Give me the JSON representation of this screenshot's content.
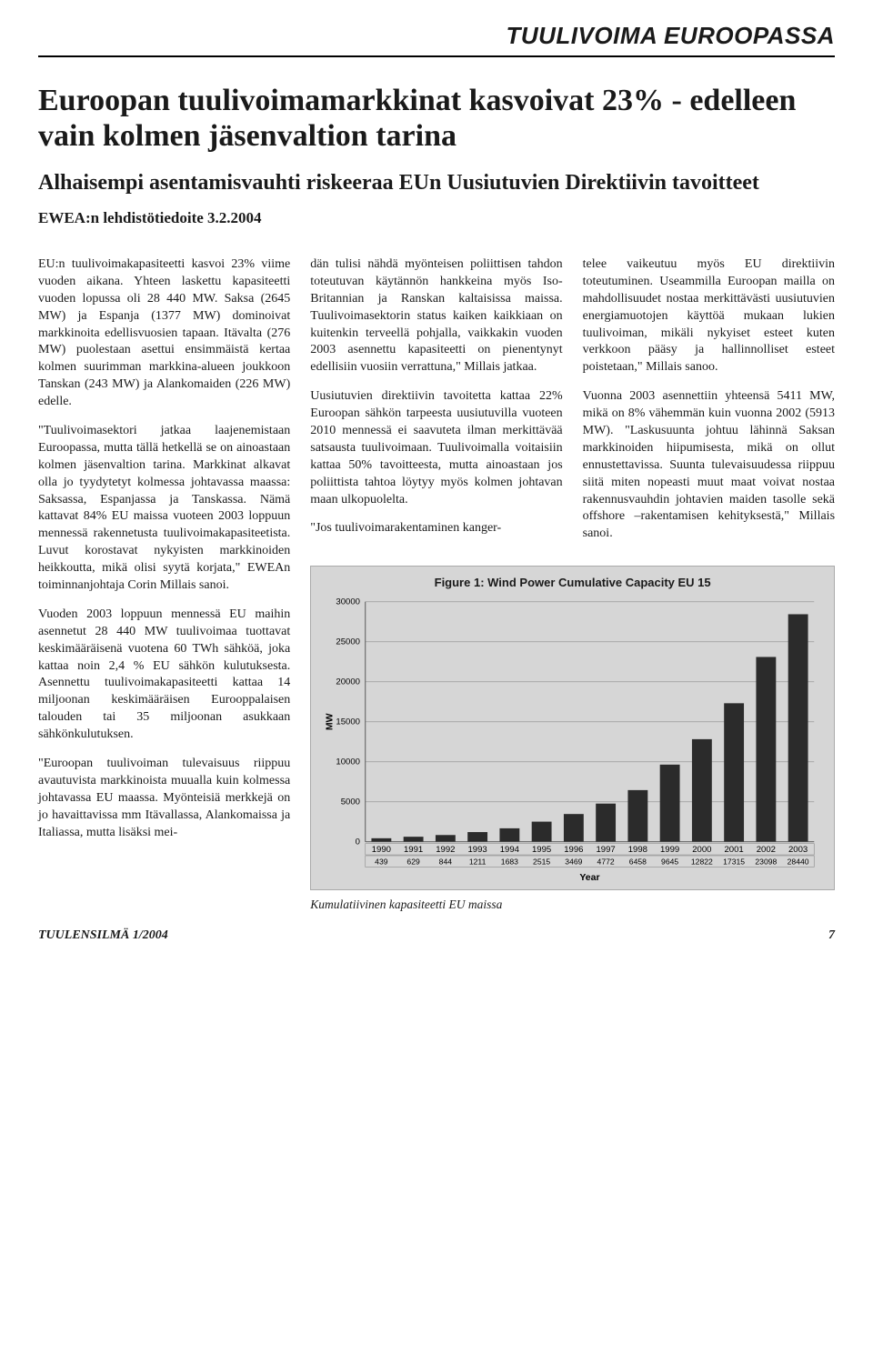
{
  "section_header": "TUULIVOIMA EUROOPASSA",
  "headline": "Euroopan tuulivoimamarkkinat kasvoivat 23% - edelleen vain kolmen jäsenvaltion tarina",
  "subhead": "Alhaisempi asentamisvauhti riskeeraa EUn Uusiutuvien Direktiivin tavoitteet",
  "dateline": "EWEA:n lehdistötiedoite 3.2.2004",
  "col1": {
    "p1": "EU:n tuulivoimakapasiteetti kasvoi 23% viime vuoden aikana. Yhteen laskettu kapasiteetti vuoden lopussa oli 28 440 MW. Saksa (2645 MW) ja Espanja (1377 MW) dominoivat markkinoita edellisvuosien tapaan. Itävalta (276 MW) puolestaan asettui ensimmäistä kertaa kolmen suurimman markkina-alueen joukkoon Tanskan (243 MW) ja Alankomaiden (226 MW) edelle.",
    "p2": "\"Tuulivoimasektori jatkaa laajenemistaan Euroopassa, mutta tällä hetkellä se on ainoastaan kolmen jäsenvaltion tarina. Markkinat alkavat olla jo tyydytetyt kolmessa johtavassa maassa: Saksassa, Espanjassa ja Tanskassa. Nämä kattavat 84% EU maissa vuoteen 2003 loppuun mennessä rakennetusta tuulivoimakapasiteetista. Luvut korostavat nykyisten markkinoiden heikkoutta, mikä olisi syytä korjata,\" EWEAn toiminnanjohtaja Corin Millais sanoi.",
    "p3": "Vuoden 2003 loppuun mennessä EU maihin asennetut 28 440 MW tuulivoimaa tuottavat keskimääräisenä vuotena 60 TWh sähköä, joka kattaa noin 2,4 % EU sähkön kulutuksesta. Asennettu tuulivoimakapasiteetti kattaa 14 miljoonan keskimääräisen Eurooppalaisen talouden tai 35 miljoonan asukkaan sähkönkulutuksen.",
    "p4": "\"Euroopan tuulivoiman tulevaisuus riippuu avautuvista markkinoista muualla kuin kolmessa johtavassa EU maassa. Myönteisiä merkkejä on jo havaittavissa mm Itävallassa, Alankomaissa ja Italiassa, mutta lisäksi mei-"
  },
  "col2": {
    "p1": "dän tulisi nähdä myönteisen poliittisen tahdon toteutuvan käytännön hankkeina myös Iso-Britannian ja Ranskan kaltaisissa maissa. Tuulivoimasektorin status kaiken kaikkiaan on kuitenkin terveellä pohjalla, vaikkakin vuoden 2003 asennettu kapasiteetti on pienentynyt edellisiin vuosiin verrattuna,\" Millais jatkaa.",
    "p2": "Uusiutuvien direktiivin tavoitetta kattaa 22% Euroopan sähkön tarpeesta uusiutuvilla vuoteen 2010 mennessä ei saavuteta ilman merkittävää satsausta tuulivoimaan. Tuulivoimalla voitaisiin kattaa 50% tavoitteesta, mutta ainoastaan jos poliittista tahtoa löytyy myös kolmen johtavan maan ulkopuolelta.",
    "p3": "\"Jos tuulivoimarakentaminen kanger-"
  },
  "col3": {
    "p1": "telee vaikeutuu myös EU direktiivin toteutuminen. Useammilla Euroopan mailla on mahdollisuudet nostaa merkittävästi uusiutuvien energiamuotojen käyttöä mukaan lukien tuulivoiman, mikäli nykyiset esteet kuten verkkoon pääsy ja hallinnolliset esteet poistetaan,\" Millais sanoo.",
    "p2": "Vuonna 2003 asennettiin yhteensä 5411 MW, mikä on 8% vähemmän kuin vuonna 2002 (5913 MW). \"Laskusuunta johtuu lähinnä Saksan markkinoiden hiipumisesta, mikä on ollut ennustettavissa. Suunta tulevaisuudessa riippuu siitä miten nopeasti muut maat voivat nostaa rakennusvauhdin johtavien maiden tasolle sekä offshore –rakentamisen kehityksestä,\" Millais sanoi."
  },
  "chart": {
    "title": "Figure 1: Wind Power Cumulative Capacity EU 15",
    "type": "bar",
    "categories": [
      "1990",
      "1991",
      "1992",
      "1993",
      "1994",
      "1995",
      "1996",
      "1997",
      "1998",
      "1999",
      "2000",
      "2001",
      "2002",
      "2003"
    ],
    "values": [
      439,
      629,
      844,
      1211,
      1683,
      2515,
      3469,
      4772,
      6458,
      9645,
      12822,
      17315,
      23098,
      28440
    ],
    "bar_color": "#2b2b2b",
    "background_color": "#d6d6d6",
    "grid_color": "#9a9a9a",
    "ylabel": "MW",
    "xlabel": "Year",
    "ylim": [
      0,
      30000
    ],
    "ytick_step": 5000,
    "title_fontsize": 13,
    "label_fontsize": 10,
    "caption": "Kumulatiivinen kapasiteetti EU maissa"
  },
  "footer": {
    "issue": "TUULENSILMÄ 1/2004",
    "page": "7"
  }
}
